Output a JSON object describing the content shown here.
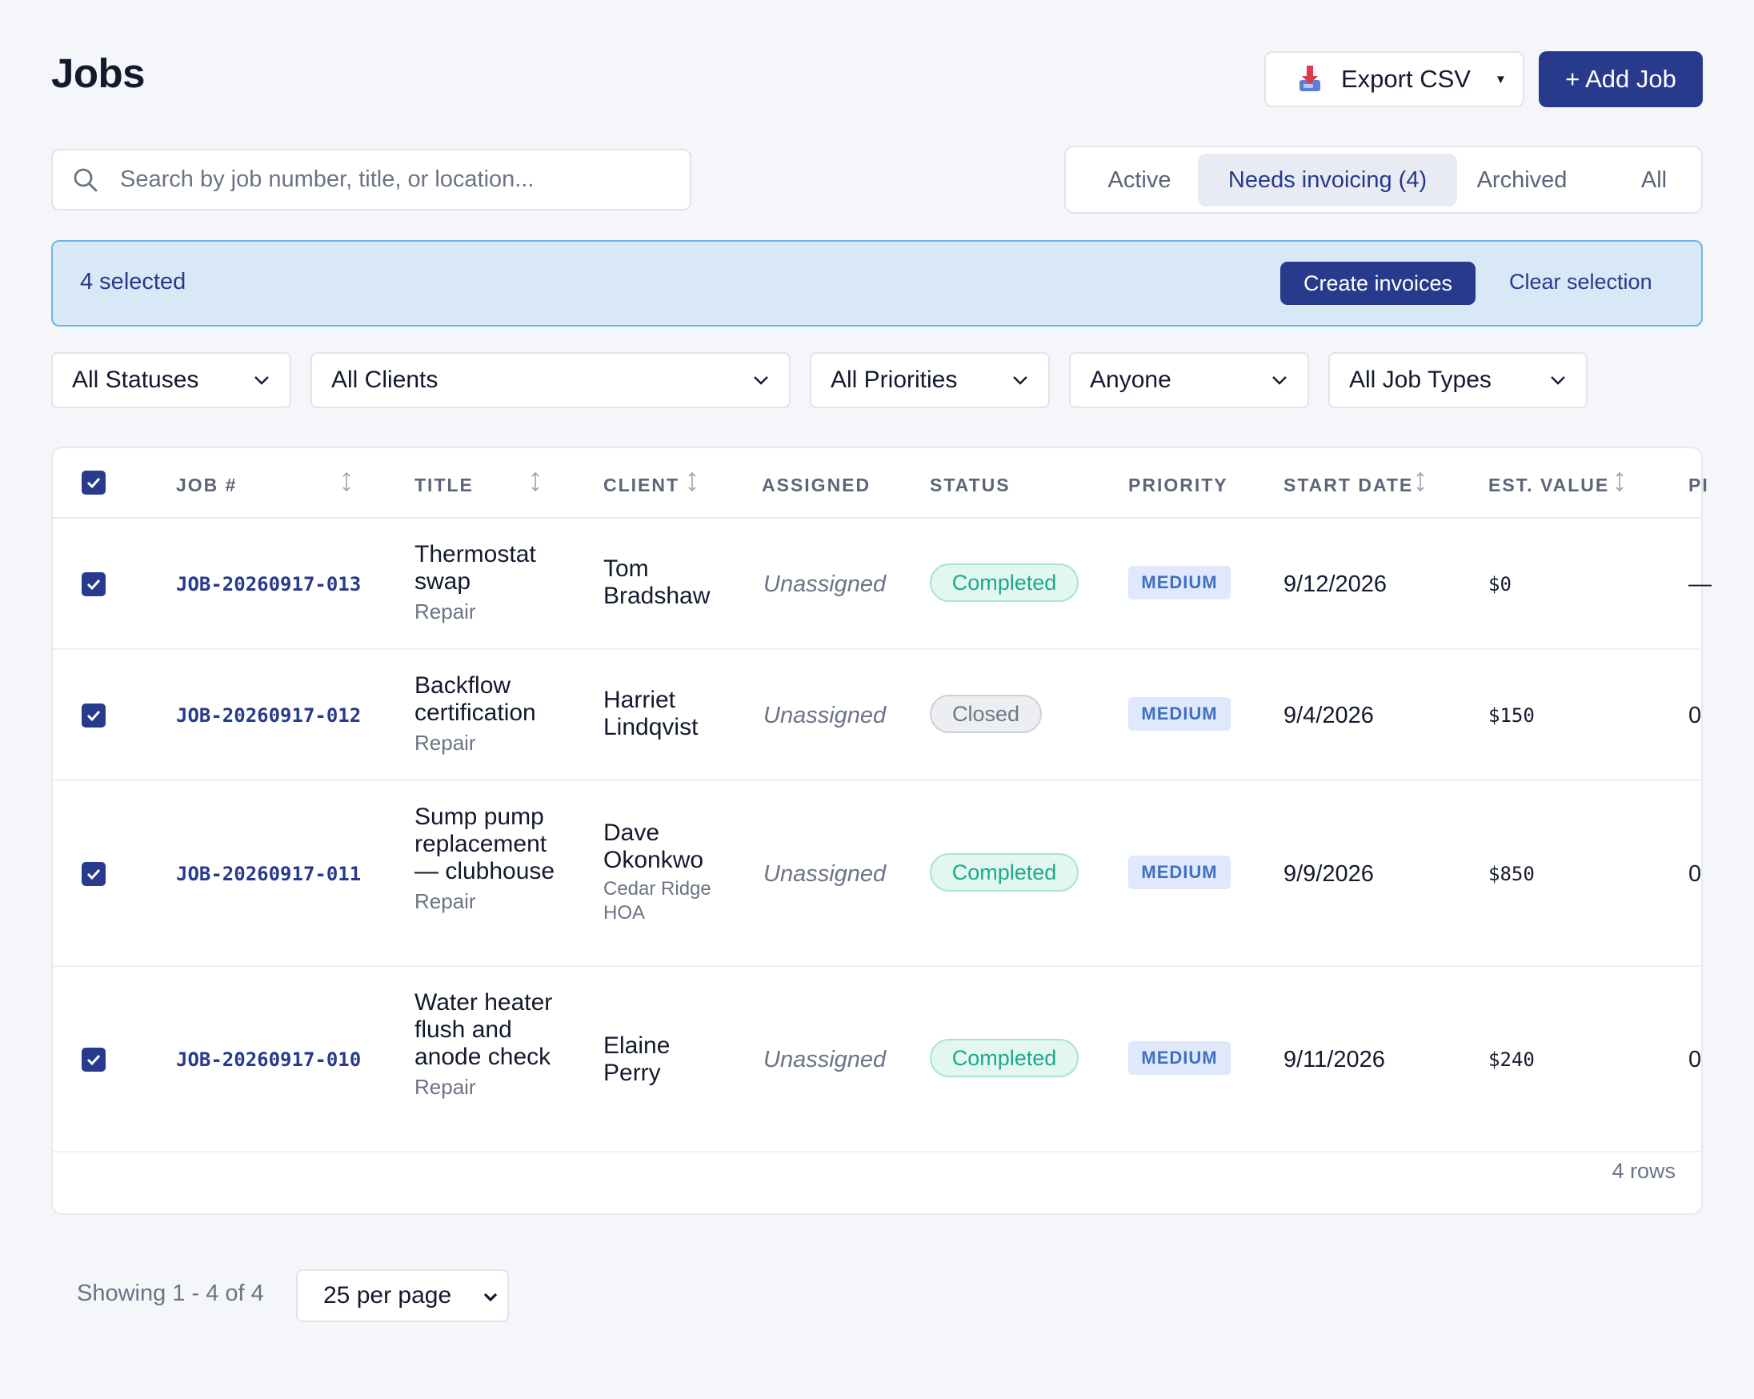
{
  "header": {
    "title": "Jobs",
    "export_label": "Export CSV",
    "add_label": "+ Add Job"
  },
  "search": {
    "placeholder": "Search by job number, title, or location..."
  },
  "tabs": [
    {
      "label": "Active"
    },
    {
      "label": "Needs invoicing (4)",
      "selected": true
    },
    {
      "label": "Archived"
    },
    {
      "label": "All"
    }
  ],
  "selection": {
    "count_label": "4 selected",
    "create_label": "Create invoices",
    "clear_label": "Clear selection"
  },
  "filters": [
    {
      "label": "All Statuses"
    },
    {
      "label": "All Clients"
    },
    {
      "label": "All Priorities"
    },
    {
      "label": "Anyone"
    },
    {
      "label": "All Job Types"
    }
  ],
  "table": {
    "columns": [
      "JOB #",
      "TITLE",
      "CLIENT",
      "ASSIGNED",
      "STATUS",
      "PRIORITY",
      "START DATE",
      "EST. VALUE",
      "PI"
    ],
    "rows": [
      {
        "job": "JOB-20260917-013",
        "title": "Thermostat swap",
        "type": "Repair",
        "client": "Tom Bradshaw",
        "client_sub": "",
        "assigned": "Unassigned",
        "status": "Completed",
        "priority": "MEDIUM",
        "start_date": "9/12/2026",
        "est_value": "$0",
        "extra": "—"
      },
      {
        "job": "JOB-20260917-012",
        "title": "Backflow certification",
        "type": "Repair",
        "client": "Harriet Lindqvist",
        "client_sub": "",
        "assigned": "Unassigned",
        "status": "Closed",
        "priority": "MEDIUM",
        "start_date": "9/4/2026",
        "est_value": "$150",
        "extra": "0"
      },
      {
        "job": "JOB-20260917-011",
        "title": "Sump pump replacement — clubhouse",
        "type": "Repair",
        "client": "Dave Okonkwo",
        "client_sub": "Cedar Ridge HOA",
        "assigned": "Unassigned",
        "status": "Completed",
        "priority": "MEDIUM",
        "start_date": "9/9/2026",
        "est_value": "$850",
        "extra": "0"
      },
      {
        "job": "JOB-20260917-010",
        "title": "Water heater flush and anode check",
        "type": "Repair",
        "client": "Elaine Perry",
        "client_sub": "",
        "assigned": "Unassigned",
        "status": "Completed",
        "priority": "MEDIUM",
        "start_date": "9/11/2026",
        "est_value": "$240",
        "extra": "0"
      }
    ],
    "row_count_label": "4 rows"
  },
  "pagination": {
    "showing_label": "Showing 1 - 4 of 4",
    "per_page_label": "25 per page"
  },
  "colors": {
    "primary": "#283a8c",
    "selection_bg": "#d8e8f6",
    "selection_border": "#6db7e5",
    "completed": "#1ca98a",
    "priority_medium": "#3f6fc2"
  },
  "icons": {
    "export": "download-tray-icon",
    "search": "search-icon",
    "dropdown": "chevron-down-icon",
    "sort": "sort-arrows-icon",
    "checkbox": "checkbox-checked-icon"
  }
}
